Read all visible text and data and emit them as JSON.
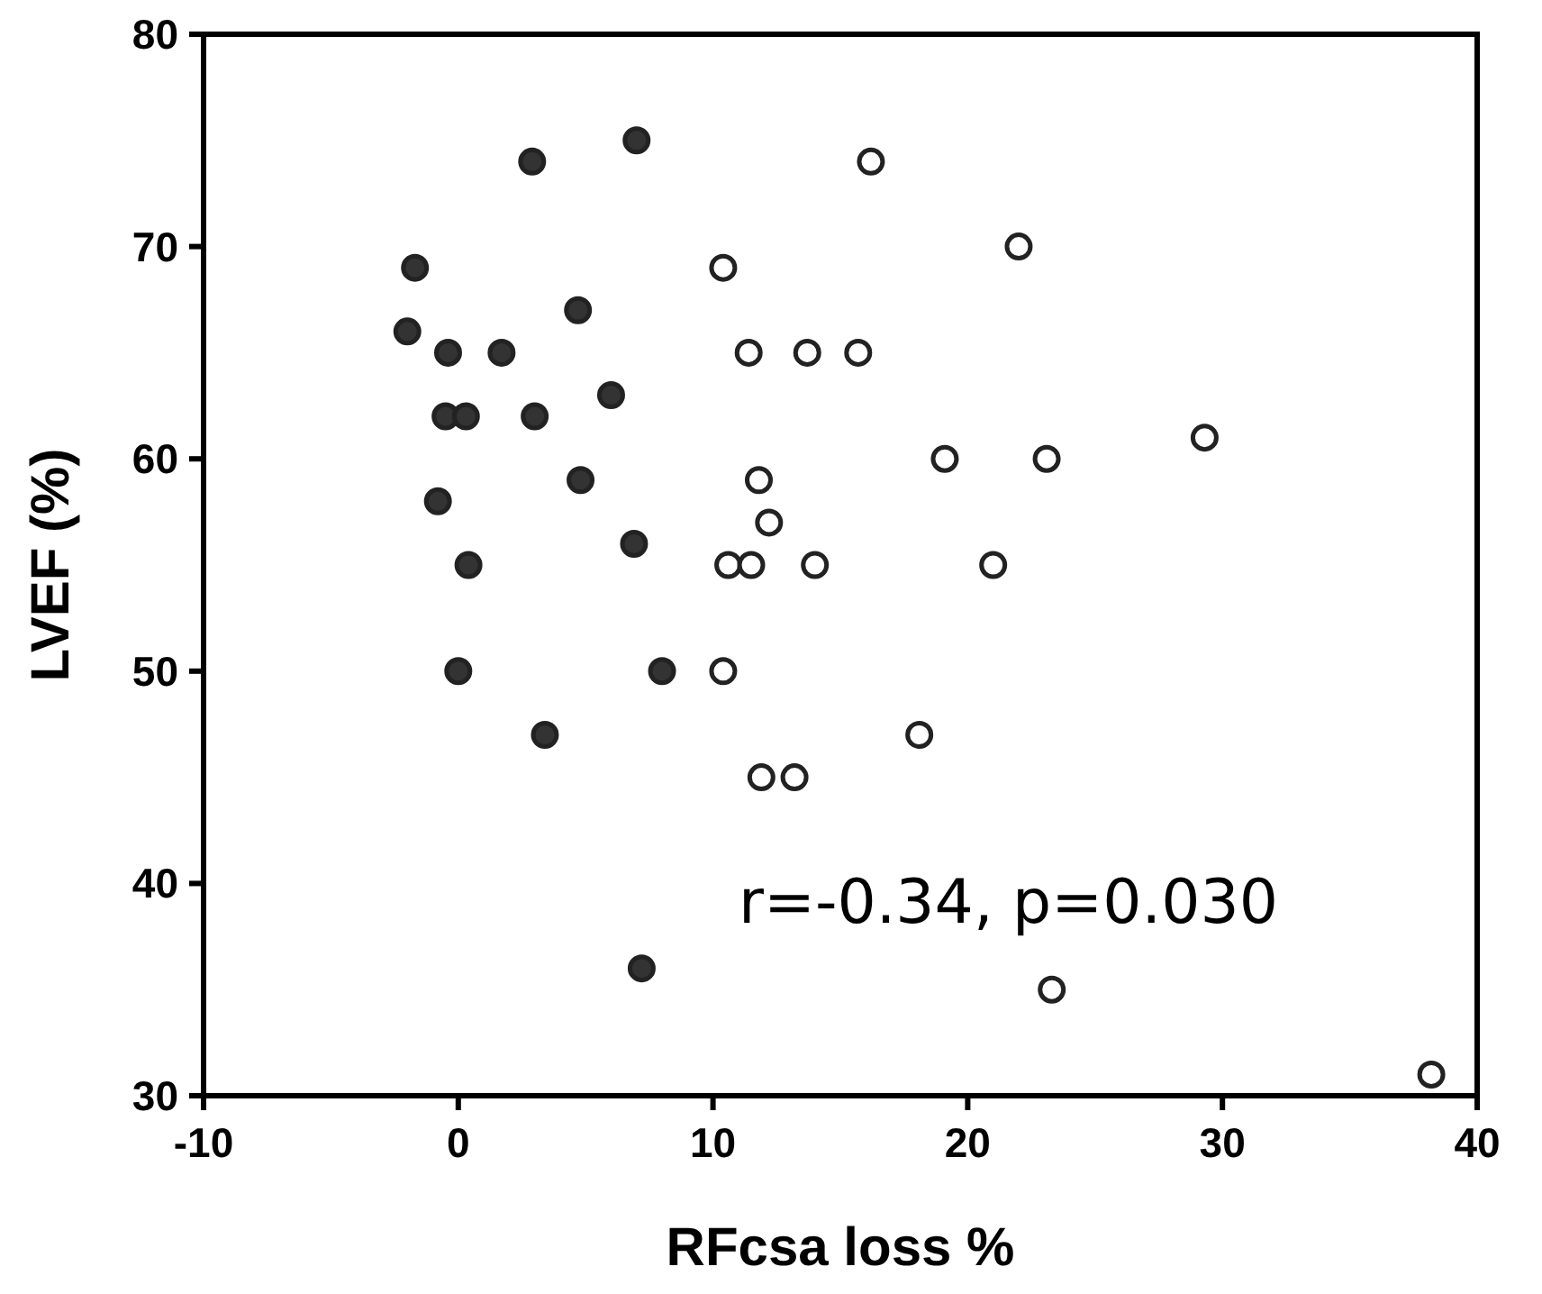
{
  "chart_data": {
    "type": "scatter",
    "xlabel": "RFcsa loss %",
    "ylabel": "LVEF (%)",
    "xlim": [
      -10,
      40
    ],
    "xticks": [
      -10,
      0,
      10,
      20,
      30,
      40
    ],
    "ylim": [
      30,
      80
    ],
    "yticks": [
      30,
      40,
      50,
      60,
      70,
      80
    ],
    "grid": false,
    "marker": "circle",
    "annotations": [
      "r=-0.34, p=0.030"
    ],
    "series": [
      {
        "color": "#333333",
        "x": [
          2.9,
          7.0,
          -1.7,
          -2.0,
          -0.4,
          1.7,
          4.7,
          6.0,
          -0.5,
          0.3,
          3.0,
          4.8,
          -0.8,
          6.9,
          0.4,
          0,
          8.0,
          3.4,
          7.2
        ],
        "values": [
          74,
          75,
          69,
          66,
          65,
          65,
          67,
          63,
          62,
          62,
          62,
          59,
          58,
          56,
          55,
          50,
          50,
          47,
          36
        ]
      },
      {
        "color": "#ffffff",
        "x": [
          16.2,
          22.0,
          10.4,
          11.4,
          13.7,
          15.7,
          29.3,
          19.1,
          23.1,
          11.8,
          12.2,
          10.6,
          11.5,
          14.0,
          21.0,
          10.4,
          18.1,
          11.9,
          13.2,
          23.3,
          38.2
        ],
        "values": [
          74,
          70,
          69,
          65,
          65,
          65,
          61,
          60,
          60,
          59,
          57,
          55,
          55,
          55,
          55,
          50,
          47,
          45,
          45,
          35,
          31
        ]
      }
    ]
  }
}
